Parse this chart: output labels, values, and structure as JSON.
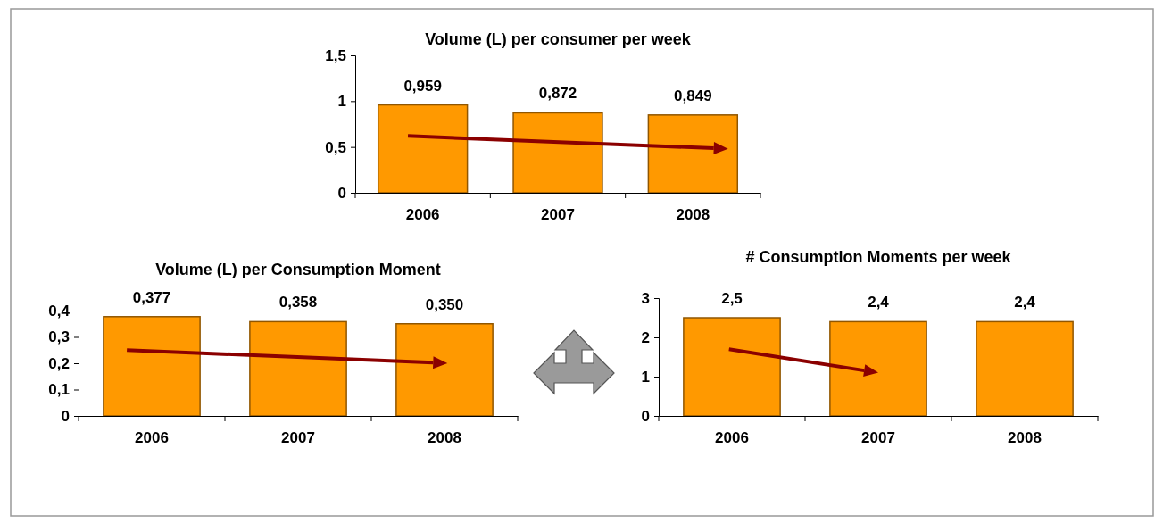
{
  "chart_data": [
    {
      "type": "bar",
      "title": "Volume (L) per consumer per week",
      "categories": [
        "2006",
        "2007",
        "2008"
      ],
      "values": [
        0.959,
        0.872,
        0.849
      ],
      "value_labels": [
        "0,959",
        "0,872",
        "0,849"
      ],
      "color": "#ff9900",
      "ylim": [
        0,
        1.5
      ],
      "yticks": [
        0,
        {
          "value": 0.5,
          "label": "0,5"
        },
        1,
        {
          "value": 1.5,
          "label": "1,5"
        }
      ],
      "grid": false
    },
    {
      "type": "bar",
      "title": "Volume (L) per Consumption Moment",
      "categories": [
        "2006",
        "2007",
        "2008"
      ],
      "values": [
        0.377,
        0.358,
        0.35
      ],
      "value_labels": [
        "0,377",
        "0,358",
        "0,350"
      ],
      "color": "#ff9900",
      "ylim": [
        0,
        0.4
      ],
      "yticks": [
        0,
        {
          "value": 0.1,
          "label": "0,1"
        },
        {
          "value": 0.2,
          "label": "0,2"
        },
        {
          "value": 0.3,
          "label": "0,3"
        },
        {
          "value": 0.4,
          "label": "0,4"
        }
      ],
      "grid": false
    },
    {
      "type": "bar",
      "title": "# Consumption Moments per week",
      "categories": [
        "2006",
        "2007",
        "2008"
      ],
      "values": [
        2.5,
        2.4,
        2.4
      ],
      "value_labels": [
        "2,5",
        "2,4",
        "2,4"
      ],
      "color": "#ff9900",
      "ylim": [
        0,
        3
      ],
      "yticks": [
        0,
        1,
        2,
        3
      ],
      "grid": false
    }
  ]
}
